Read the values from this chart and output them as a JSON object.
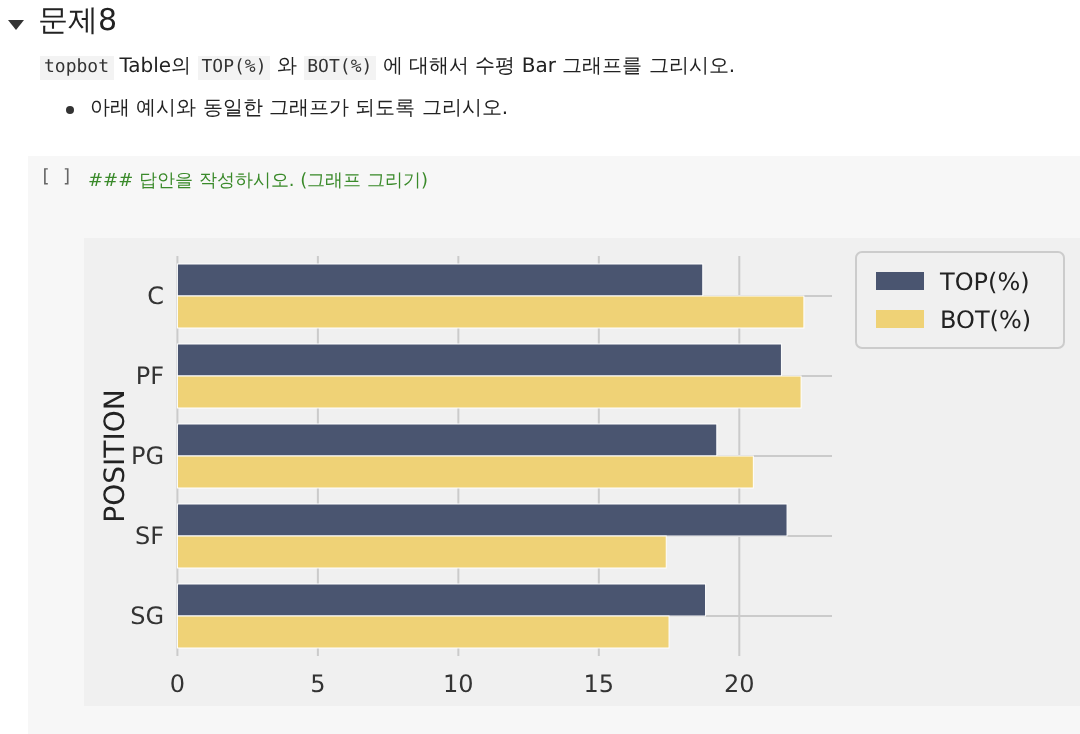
{
  "chart_data": {
    "type": "bar",
    "orientation": "horizontal",
    "title": "문제8",
    "subtitle": "topbot Table의 TOP(%) 와 BOT(%) 에 대해서 수평 Bar 그래프를 그리시오.",
    "annotations": [
      "아래 예시와 동일한 그래프가 되도록 그리시오.",
      "[ ]",
      "### 답안을 작성하시오. (그래프 그리기)"
    ],
    "ylabel": "POSITION",
    "categories": [
      "C",
      "PF",
      "PG",
      "SF",
      "SG"
    ],
    "series": [
      {
        "name": "TOP(%)",
        "color": "#4a5570",
        "values": [
          18.7,
          21.5,
          19.2,
          21.7,
          18.8
        ]
      },
      {
        "name": "BOT(%)",
        "color": "#efd276",
        "values": [
          22.3,
          22.2,
          20.5,
          17.4,
          17.5
        ]
      }
    ],
    "xlim": [
      0,
      23.3
    ],
    "xticks": [
      0,
      5,
      10,
      15,
      20
    ],
    "grid": true,
    "legend": "right"
  }
}
